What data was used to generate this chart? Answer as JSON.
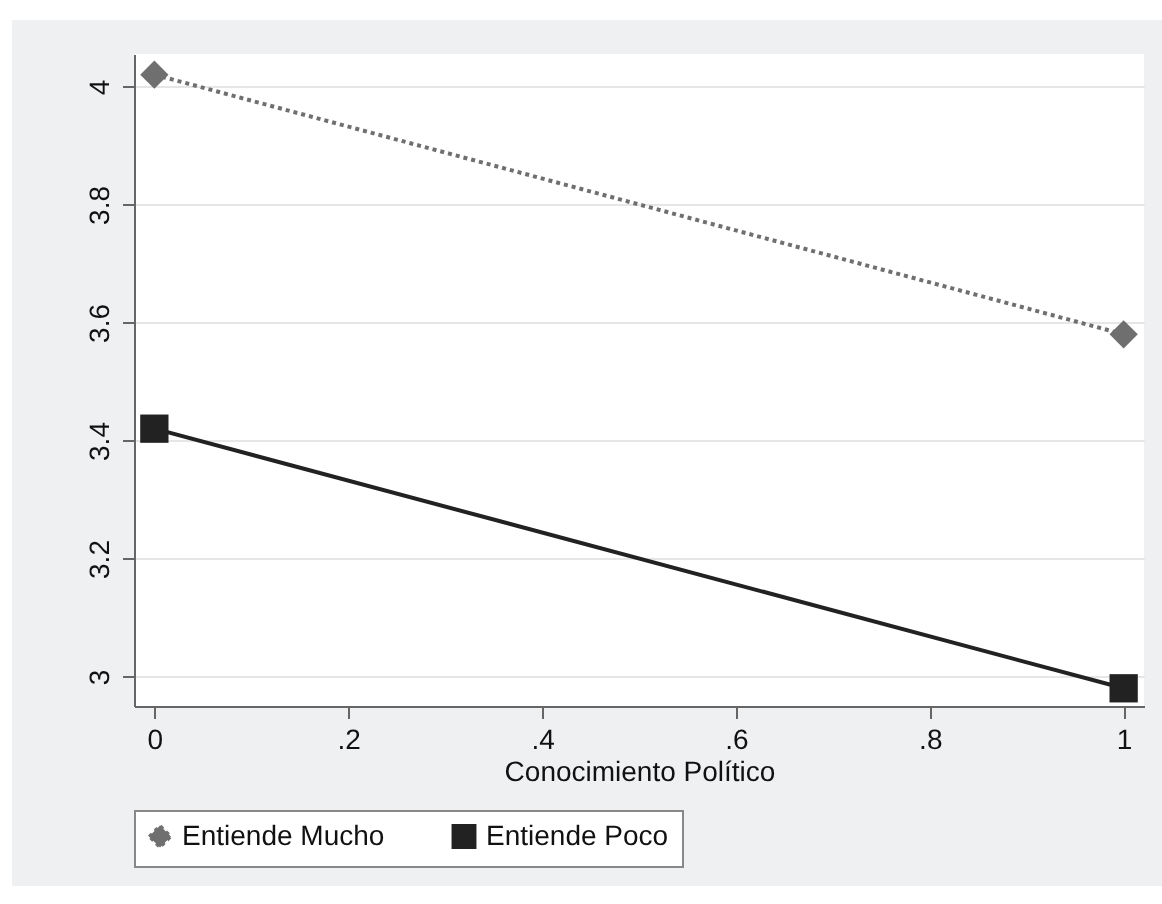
{
  "chart_data": {
    "type": "line",
    "xlabel": "Conocimiento Político",
    "x": [
      0,
      1
    ],
    "series": [
      {
        "name": "Entiende Mucho",
        "color": "#6f6f6f",
        "values": [
          4.02,
          3.58
        ],
        "marker": "diamond",
        "line_style": "dotted"
      },
      {
        "name": "Entiende Poco",
        "color": "#222222",
        "values": [
          3.42,
          2.98
        ],
        "marker": "square",
        "line_style": "solid"
      }
    ],
    "xlim": [
      -0.021,
      1.021
    ],
    "xticks": [
      0,
      {
        "value": 0.2,
        "label": ".2"
      },
      {
        "value": 0.4,
        "label": ".4"
      },
      {
        "value": 0.6,
        "label": ".6"
      },
      {
        "value": 0.8,
        "label": ".8"
      },
      1
    ],
    "ylim": [
      2.95,
      4.055
    ],
    "yticks": [
      3,
      3.2,
      3.4,
      3.6,
      3.8,
      4
    ],
    "grid": "y",
    "legend": "bottom"
  }
}
